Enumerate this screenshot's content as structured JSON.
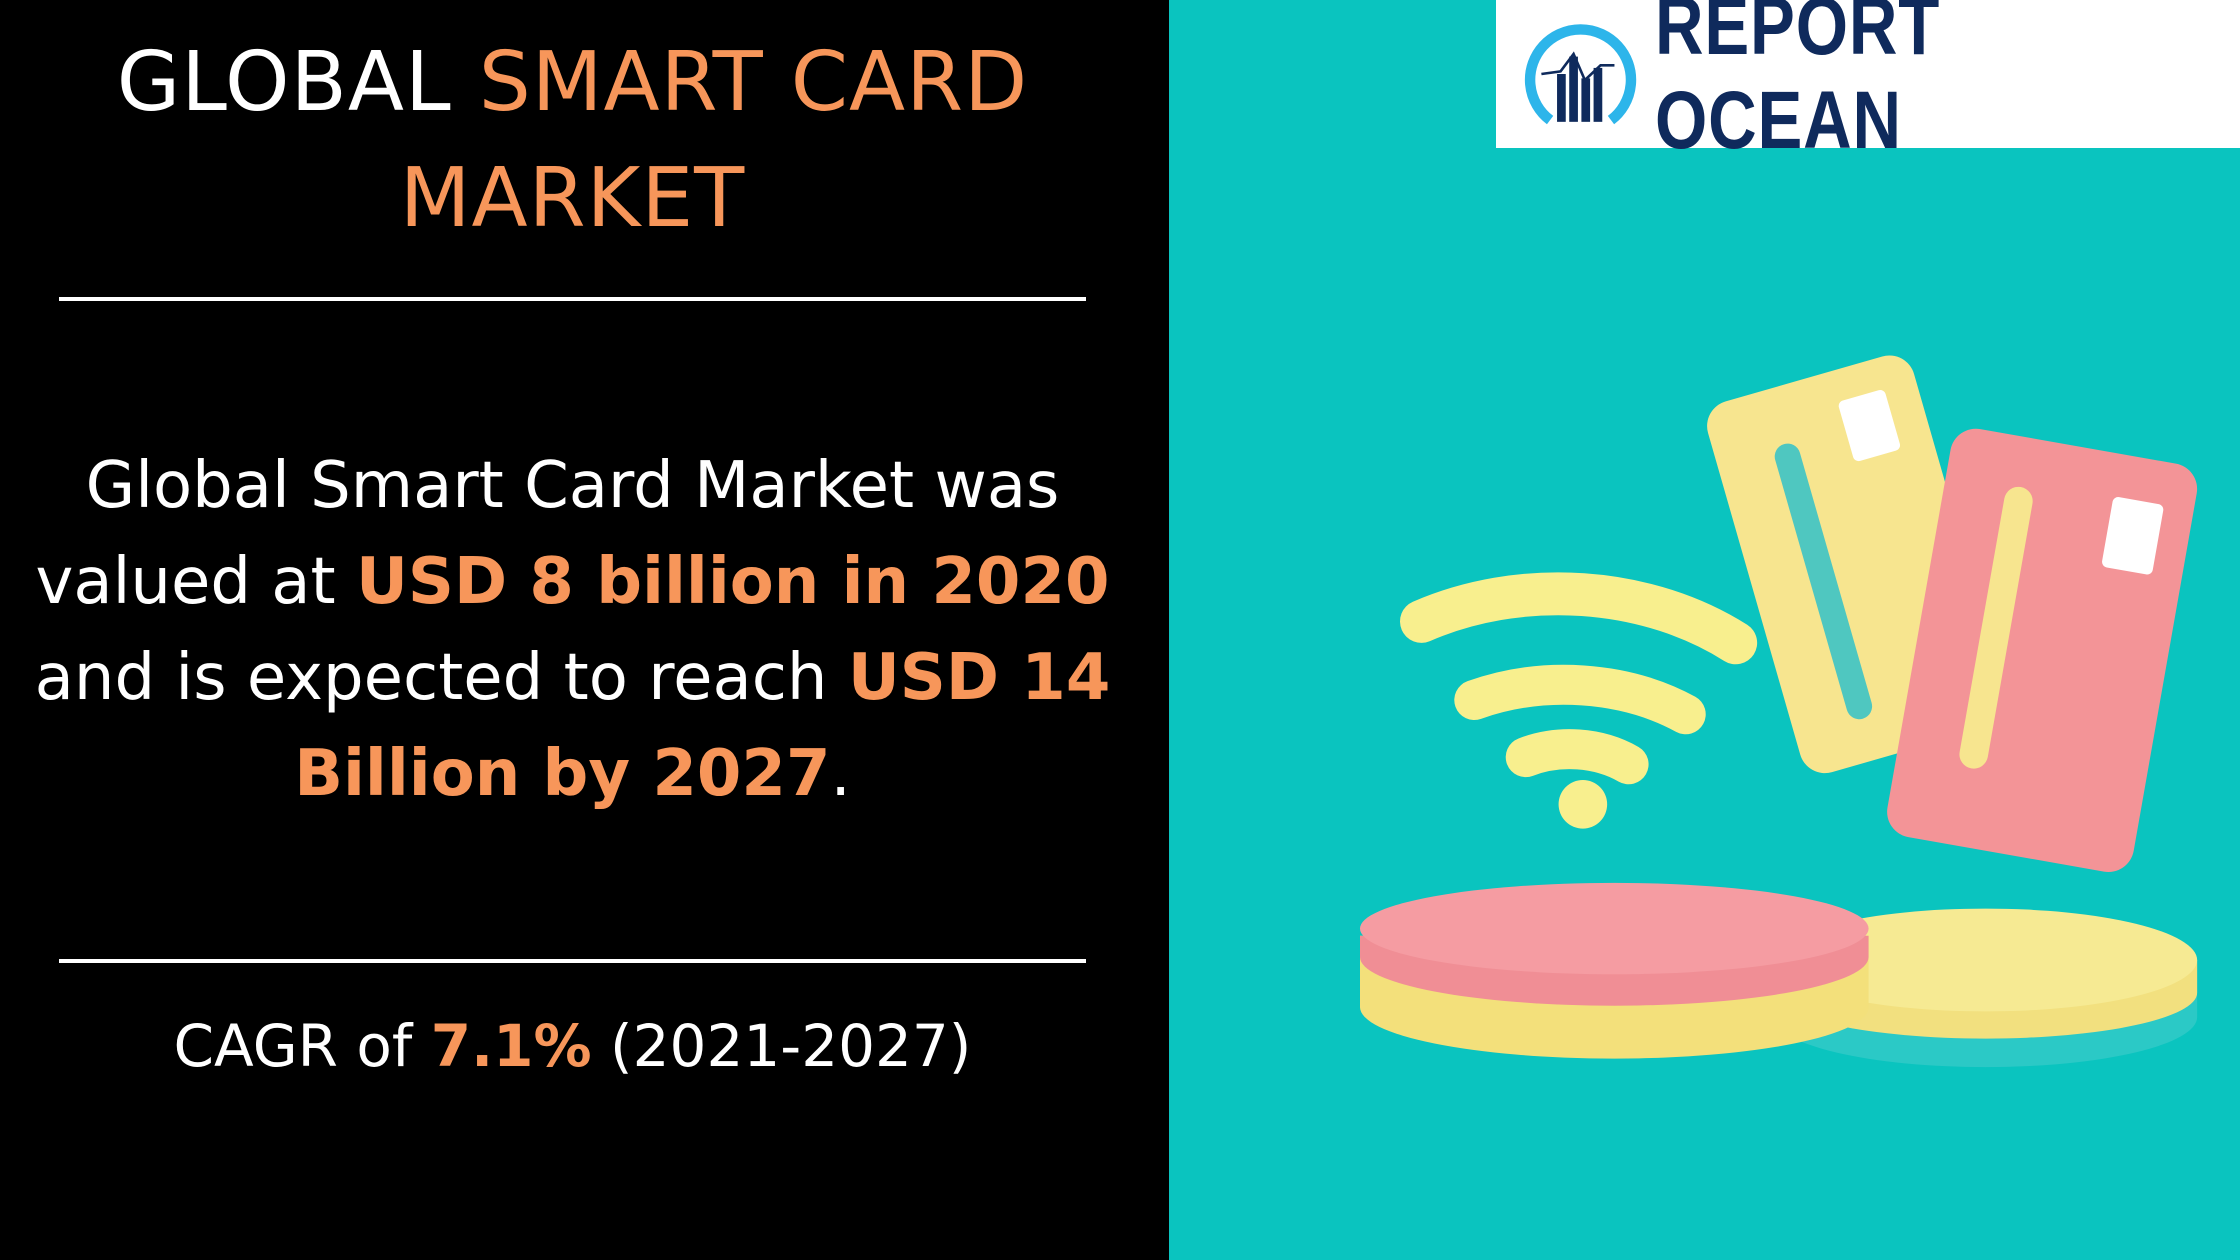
{
  "title": {
    "prefix": "GLOBAL ",
    "highlight_line1": "SMART CARD",
    "highlight_line2": "MARKET"
  },
  "summary": {
    "text1": "Global Smart Card Market was valued at ",
    "value_2020": "USD 8 billion in 2020",
    "text2": " and is expected to reach ",
    "value_2027": "USD 14 Billion by 2027",
    "text3": "."
  },
  "cagr": {
    "label": "CAGR of ",
    "value": "7.1%",
    "period": " (2021-2027)"
  },
  "logo": {
    "text": "REPORT OCEAN"
  },
  "colors": {
    "background_left": "#000000",
    "background_right": "#0ac4bf",
    "accent": "#f7965a",
    "logo_text": "#0f2a5c",
    "logo_ring": "#2db5ea"
  }
}
